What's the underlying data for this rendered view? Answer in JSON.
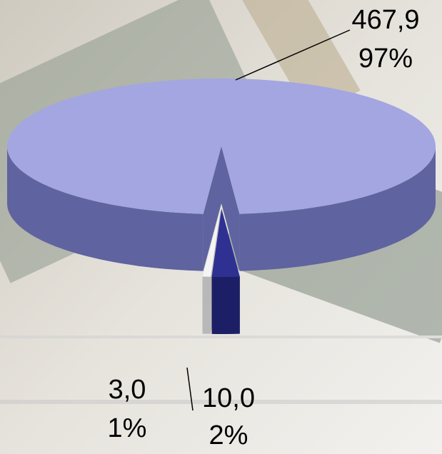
{
  "chart_data": {
    "type": "pie3d",
    "values": [
      467.9,
      3.0,
      10.0
    ],
    "value_labels": [
      "467,9",
      "3,0",
      "10,0"
    ],
    "percents": [
      97,
      1,
      2
    ],
    "percent_labels": [
      "97%",
      "1%",
      "2%"
    ],
    "colors": [
      "#a3a6e0",
      "#f4f4f4",
      "#2e3192"
    ],
    "side_colors": [
      "#5f639f",
      "#b8b8b8",
      "#1d1f66"
    ]
  }
}
